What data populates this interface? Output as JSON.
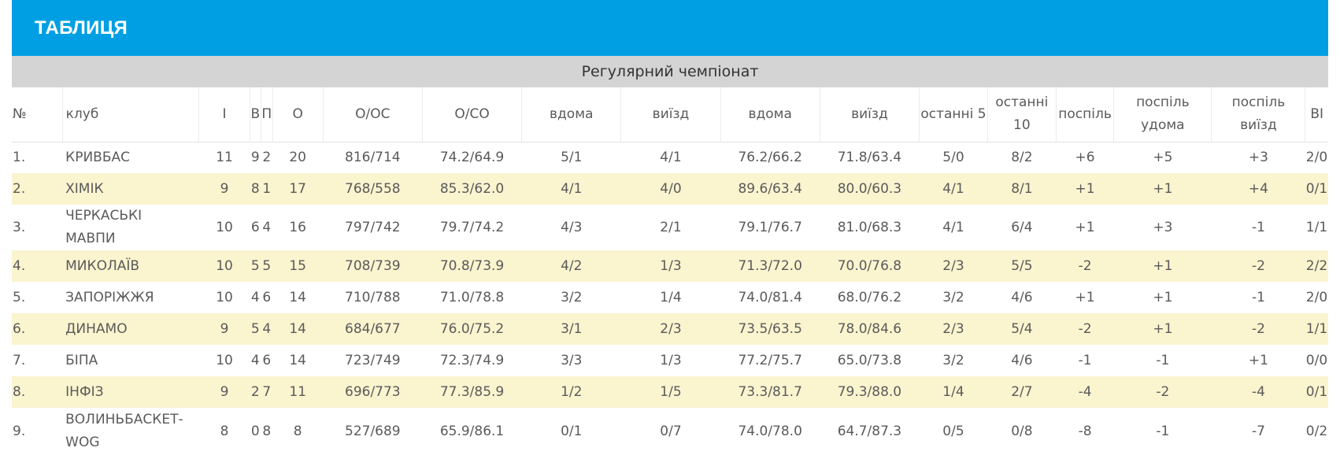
{
  "header": {
    "title": "ТАБЛИЦЯ"
  },
  "section": {
    "title": "Регулярний чемпіонат"
  },
  "columns": [
    "№",
    "клуб",
    "І",
    "В",
    "П",
    "О",
    "О/ОС",
    "О/СО",
    "вдома",
    "виїзд",
    "вдома",
    "виїзд",
    "останні 5",
    "останні 10",
    "поспіль",
    "поспіль удома",
    "поспіль виїзд",
    "ВІ"
  ],
  "rows": [
    [
      "1.",
      "КРИВБАС",
      "11",
      "9",
      "2",
      "20",
      "816/714",
      "74.2/64.9",
      "5/1",
      "4/1",
      "76.2/66.2",
      "71.8/63.4",
      "5/0",
      "8/2",
      "+6",
      "+5",
      "+3",
      "2/0"
    ],
    [
      "2.",
      "ХІМІК",
      "9",
      "8",
      "1",
      "17",
      "768/558",
      "85.3/62.0",
      "4/1",
      "4/0",
      "89.6/63.4",
      "80.0/60.3",
      "4/1",
      "8/1",
      "+1",
      "+1",
      "+4",
      "0/1"
    ],
    [
      "3.",
      "ЧЕРКАСЬКІ МАВПИ",
      "10",
      "6",
      "4",
      "16",
      "797/742",
      "79.7/74.2",
      "4/3",
      "2/1",
      "79.1/76.7",
      "81.0/68.3",
      "4/1",
      "6/4",
      "+1",
      "+3",
      "-1",
      "1/1"
    ],
    [
      "4.",
      "МИКОЛАЇВ",
      "10",
      "5",
      "5",
      "15",
      "708/739",
      "70.8/73.9",
      "4/2",
      "1/3",
      "71.3/72.0",
      "70.0/76.8",
      "2/3",
      "5/5",
      "-2",
      "+1",
      "-2",
      "2/2"
    ],
    [
      "5.",
      "ЗАПОРІЖЖЯ",
      "10",
      "4",
      "6",
      "14",
      "710/788",
      "71.0/78.8",
      "3/2",
      "1/4",
      "74.0/81.4",
      "68.0/76.2",
      "3/2",
      "4/6",
      "+1",
      "+1",
      "-1",
      "2/0"
    ],
    [
      "6.",
      "ДИНАМО",
      "9",
      "5",
      "4",
      "14",
      "684/677",
      "76.0/75.2",
      "3/1",
      "2/3",
      "73.5/63.5",
      "78.0/84.6",
      "2/3",
      "5/4",
      "-2",
      "+1",
      "-2",
      "1/1"
    ],
    [
      "7.",
      "БІПА",
      "10",
      "4",
      "6",
      "14",
      "723/749",
      "72.3/74.9",
      "3/3",
      "1/3",
      "77.2/75.7",
      "65.0/73.8",
      "3/2",
      "4/6",
      "-1",
      "-1",
      "+1",
      "0/0"
    ],
    [
      "8.",
      "ІНФІЗ",
      "9",
      "2",
      "7",
      "11",
      "696/773",
      "77.3/85.9",
      "1/2",
      "1/5",
      "73.3/81.7",
      "79.3/88.0",
      "1/4",
      "2/7",
      "-4",
      "-2",
      "-4",
      "0/1"
    ],
    [
      "9.",
      "ВОЛИНЬБАСКЕТ-WOG",
      "8",
      "0",
      "8",
      "8",
      "527/689",
      "65.9/86.1",
      "0/1",
      "0/7",
      "74.0/78.0",
      "64.7/87.3",
      "0/5",
      "0/8",
      "-8",
      "-1",
      "-7",
      "0/2"
    ]
  ],
  "colors": {
    "header_bg": "#009fe3",
    "section_bg": "#d4d4d4",
    "alt_row_bg": "#faf4cf"
  }
}
